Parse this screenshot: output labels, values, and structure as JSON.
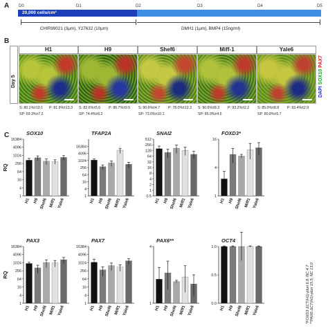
{
  "panels": {
    "a": "A",
    "b": "B",
    "c": "C"
  },
  "timeline": {
    "days": [
      "D0",
      "D1",
      "D2",
      "D3",
      "D4",
      "D5"
    ],
    "density_label": "20,000 cells/cm²",
    "phase1_condition": "CHIR99021 (3μm), Y27632 (10μm)",
    "phase2_condition": "DMH1 (1μm), BMP4 (15ng/ml)",
    "colors": {
      "phase1": "#1a3fb8",
      "phase2": "#3e8ee3"
    }
  },
  "imaging": {
    "row_label": "Day 5",
    "lines": [
      {
        "name": "H1",
        "s": "S: 80.1%±10.1",
        "p": "P: 81.9%±13.3",
        "sp": "SP: 69.3%±7.2"
      },
      {
        "name": "H9",
        "s": "S: 82.6%±5.6",
        "p": "P: 86.7%±9.5",
        "sp": "SP: 74.4%±6.2"
      },
      {
        "name": "Shef6",
        "s": "S: 90.6%±4.7",
        "p": "P: 78.0%±12.3",
        "sp": "SP: 73.0%±10.1"
      },
      {
        "name": "Miff-1",
        "s": "S: 90.6%±8.3",
        "p": "P: 93.2%±2.2",
        "sp": "SP: 85.9%±4.5"
      },
      {
        "name": "Yale6",
        "s": "S: 85.0%±8.8",
        "p": "P: 93.4%±2.9",
        "sp": "SP: 80.8%±5.7"
      }
    ],
    "stain_legend": [
      {
        "label": "DAPI",
        "color": "#2030c8"
      },
      {
        "label": "SOX10",
        "color": "#1f9a2a"
      },
      {
        "label": "PAX7",
        "color": "#d41f1f"
      }
    ]
  },
  "chart_data": [
    {
      "type": "bar",
      "title": "SOX10",
      "ylabel": "RQ",
      "log_scale": true,
      "ylim": [
        1,
        16384
      ],
      "yticks": [
        "16384",
        "4096",
        "1024",
        "256",
        "64",
        "16",
        "4",
        "1"
      ],
      "categories": [
        "H1",
        "H9",
        "Shef6",
        "Miff1",
        "Yale6"
      ],
      "values": [
        450,
        680,
        380,
        350,
        720
      ],
      "errors": [
        160,
        260,
        170,
        130,
        260
      ],
      "colors": [
        "#111111",
        "#7a7a7a",
        "#a9a9a9",
        "#e0e0e0",
        "#6a6a6a"
      ]
    },
    {
      "type": "bar",
      "title": "TFAP2A",
      "ylabel": "",
      "log_scale": true,
      "ylim": [
        1,
        65536
      ],
      "yticks": [
        "16384",
        "4096",
        "1024",
        "256",
        "64",
        "16",
        "4",
        "1"
      ],
      "categories": [
        "H1",
        "H9",
        "Shef6",
        "Miff1",
        "Yale6"
      ],
      "values": [
        1100,
        300,
        620,
        7500,
        480
      ],
      "errors": [
        280,
        130,
        300,
        3500,
        240
      ],
      "colors": [
        "#111111",
        "#7a7a7a",
        "#a9a9a9",
        "#e0e0e0",
        "#6a6a6a"
      ]
    },
    {
      "type": "bar",
      "title": "SNAI2",
      "ylabel": "",
      "log_scale": true,
      "ylim": [
        0.5,
        512
      ],
      "yticks": [
        "512",
        "256",
        "128",
        "64",
        "32",
        "16",
        "8",
        "4",
        "2",
        "1",
        "0.5"
      ],
      "categories": [
        "H1",
        "H9",
        "Shef6",
        "Miff1",
        "Yale6"
      ],
      "values": [
        160,
        100,
        170,
        130,
        80
      ],
      "errors": [
        60,
        50,
        80,
        60,
        35
      ],
      "colors": [
        "#111111",
        "#7a7a7a",
        "#a9a9a9",
        "#e0e0e0",
        "#6a6a6a"
      ]
    },
    {
      "type": "bar",
      "title": "FOXD3",
      "title_mark": "*",
      "ylabel": "",
      "log_scale": true,
      "ylim": [
        1,
        16
      ],
      "yticks": [
        "16",
        "4",
        "1"
      ],
      "categories": [
        "H1",
        "H9",
        "Shef6",
        "Miff1",
        "Yale6"
      ],
      "values": [
        2.3,
        7.6,
        7.0,
        9.5,
        10.5
      ],
      "errors": [
        1.0,
        2.6,
        0.6,
        3.5,
        3.0
      ],
      "colors": [
        "#111111",
        "#7a7a7a",
        "#a9a9a9",
        "#e0e0e0",
        "#6a6a6a"
      ]
    },
    {
      "type": "bar",
      "title": "PAX3",
      "ylabel": "RQ",
      "log_scale": true,
      "ylim": [
        1,
        16384
      ],
      "yticks": [
        "16384",
        "4096",
        "1024",
        "256",
        "64",
        "16",
        "4",
        "1"
      ],
      "categories": [
        "H1",
        "H9",
        "Shef6",
        "Miff1",
        "Yale6"
      ],
      "values": [
        900,
        420,
        1050,
        1000,
        1700
      ],
      "errors": [
        200,
        250,
        600,
        500,
        800
      ],
      "colors": [
        "#111111",
        "#7a7a7a",
        "#a9a9a9",
        "#e0e0e0",
        "#6a6a6a"
      ]
    },
    {
      "type": "bar",
      "title": "PAX7",
      "ylabel": "",
      "log_scale": true,
      "ylim": [
        1,
        16384
      ],
      "yticks": [
        "16384",
        "4096",
        "1024",
        "256",
        "64",
        "16",
        "4",
        "1"
      ],
      "categories": [
        "H1",
        "H9",
        "Shef6",
        "Miff1",
        "Yale6"
      ],
      "values": [
        1100,
        300,
        620,
        480,
        1400
      ],
      "errors": [
        700,
        200,
        350,
        250,
        600
      ],
      "colors": [
        "#111111",
        "#7a7a7a",
        "#a9a9a9",
        "#e0e0e0",
        "#6a6a6a"
      ]
    },
    {
      "type": "bar",
      "title": "PAX6",
      "title_mark": "**",
      "ylabel": "",
      "log_scale": true,
      "ylim": [
        1,
        4
      ],
      "yticks": [
        "4",
        "1"
      ],
      "categories": [
        "H1",
        "H9",
        "Shef6",
        "Miff1",
        "Yale6"
      ],
      "values": [
        1.8,
        2.1,
        1.7,
        1.9,
        1.6
      ],
      "errors": [
        0.6,
        0.7,
        0.05,
        0.6,
        0.4
      ],
      "colors": [
        "#111111",
        "#7a7a7a",
        "#a9a9a9",
        "#e0e0e0",
        "#6a6a6a"
      ]
    },
    {
      "type": "bar",
      "title": "OCT4",
      "ylabel": "",
      "log_scale": false,
      "ylim": [
        0,
        1.0
      ],
      "yticks": [
        "1.0",
        "0.5",
        "0.0"
      ],
      "categories": [
        "H1",
        "H9",
        "Shef6",
        "Miff1",
        "Yale6"
      ],
      "values": [
        1.0,
        1.0,
        1.0,
        1.0,
        1.0
      ],
      "errors": [
        0.01,
        0.01,
        0.25,
        0.01,
        0.01
      ],
      "colors": [
        "#111111",
        "#7a7a7a",
        "#a9a9a9",
        "#e0e0e0",
        "#6a6a6a"
      ]
    }
  ],
  "footnotes": {
    "foxd3": "*FOXD3 ΔCT(H1)-pluri 6.8; NC 4.7",
    "pax6": "**PAX6 ΔCT(H1)-pluri 15.5; NC 13.0"
  }
}
